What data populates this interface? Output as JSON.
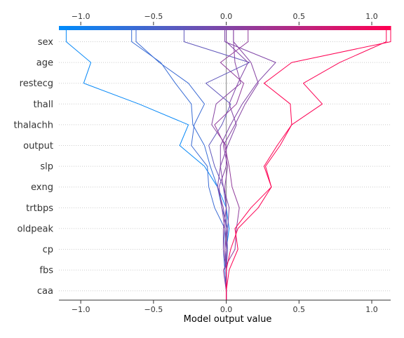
{
  "chart_data": {
    "type": "line",
    "title": "",
    "xlabel": "Model output value",
    "ylabel": "",
    "xlim": [
      -1.15,
      1.13
    ],
    "xticks": [
      -1.0,
      -0.5,
      0.0,
      0.5,
      1.0
    ],
    "xtick_labels": [
      "−1.0",
      "−0.5",
      "0.0",
      "0.5",
      "1.0"
    ],
    "base_value": 0.0,
    "colormap": [
      "#008bfb",
      "#ff0052"
    ],
    "features": [
      "caa",
      "fbs",
      "cp",
      "oldpeak",
      "trtbps",
      "exng",
      "slp",
      "output",
      "thalachh",
      "thall",
      "restecg",
      "age",
      "sex"
    ],
    "series": [
      {
        "values": [
          0.0,
          0.0,
          0.0,
          0.02,
          0.0,
          -0.06,
          -0.15,
          -0.32,
          -0.26,
          -0.6,
          -0.98,
          -0.93,
          -1.1
        ]
      },
      {
        "values": [
          0.0,
          -0.01,
          -0.02,
          -0.01,
          -0.08,
          -0.12,
          -0.13,
          -0.24,
          -0.22,
          -0.15,
          -0.26,
          -0.46,
          -0.62
        ]
      },
      {
        "values": [
          0.0,
          -0.01,
          0.0,
          0.01,
          -0.03,
          -0.06,
          -0.11,
          -0.15,
          -0.23,
          -0.24,
          -0.35,
          -0.45,
          -0.65
        ]
      },
      {
        "values": [
          0.0,
          0.0,
          0.01,
          0.0,
          0.0,
          -0.02,
          -0.08,
          -0.12,
          -0.03,
          0.03,
          -0.14,
          0.16,
          -0.29
        ]
      },
      {
        "values": [
          0.0,
          0.0,
          0.0,
          0.01,
          0.02,
          -0.02,
          -0.04,
          -0.04,
          0.03,
          0.11,
          0.21,
          0.34,
          -0.01
        ]
      },
      {
        "values": [
          0.0,
          0.0,
          -0.02,
          -0.02,
          0.0,
          -0.01,
          0.01,
          -0.02,
          0.06,
          0.13,
          0.22,
          0.17,
          0.05
        ]
      },
      {
        "values": [
          0.0,
          0.0,
          -0.01,
          0.0,
          -0.02,
          -0.06,
          -0.04,
          0.01,
          0.07,
          0.02,
          0.08,
          0.15,
          0.0
        ]
      },
      {
        "values": [
          0.0,
          0.0,
          0.0,
          -0.01,
          -0.03,
          -0.05,
          0.0,
          0.0,
          -0.1,
          -0.07,
          0.1,
          0.06,
          0.05
        ]
      },
      {
        "values": [
          0.0,
          -0.02,
          0.06,
          0.07,
          0.09,
          0.04,
          0.02,
          -0.01,
          -0.08,
          0.07,
          0.12,
          -0.04,
          0.15
        ]
      },
      {
        "values": [
          0.0,
          0.0,
          0.03,
          0.08,
          0.22,
          0.31,
          0.27,
          0.37,
          0.45,
          0.66,
          0.53,
          0.78,
          1.1
        ]
      },
      {
        "values": [
          0.0,
          0.02,
          0.08,
          0.06,
          0.17,
          0.31,
          0.26,
          0.35,
          0.45,
          0.44,
          0.26,
          0.45,
          1.13
        ]
      }
    ]
  }
}
